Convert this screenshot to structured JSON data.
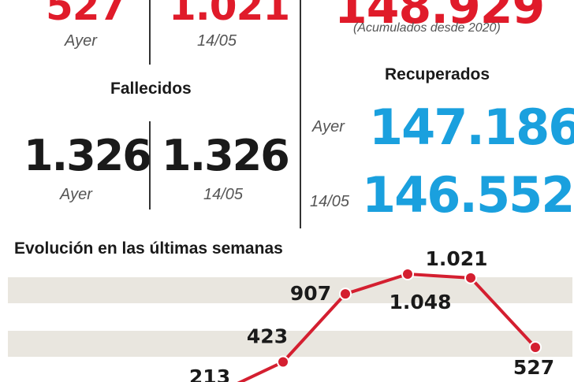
{
  "top": {
    "ayer_value": "527",
    "ayer_label": "Ayer",
    "date_value": "1.021",
    "date_label": "14/05",
    "total_value": "148.929",
    "total_note": "(Acumulados desde 2020)"
  },
  "fallecidos": {
    "title": "Fallecidos",
    "ayer_value": "1.326",
    "ayer_label": "Ayer",
    "date_value": "1.326",
    "date_label": "14/05"
  },
  "recuperados": {
    "title": "Recuperados",
    "ayer_label": "Ayer",
    "ayer_value": "147.186",
    "date_label": "14/05",
    "date_value": "146.552"
  },
  "chart_data": {
    "type": "line",
    "title": "Evolución en las últimas semanas",
    "values": [
      213,
      423,
      907,
      1048,
      1021,
      527
    ],
    "labels": [
      "213",
      "423",
      "907",
      "1.048",
      "1.021",
      "527"
    ],
    "line_color": "#d41f30",
    "grid": "horizontal bands"
  }
}
